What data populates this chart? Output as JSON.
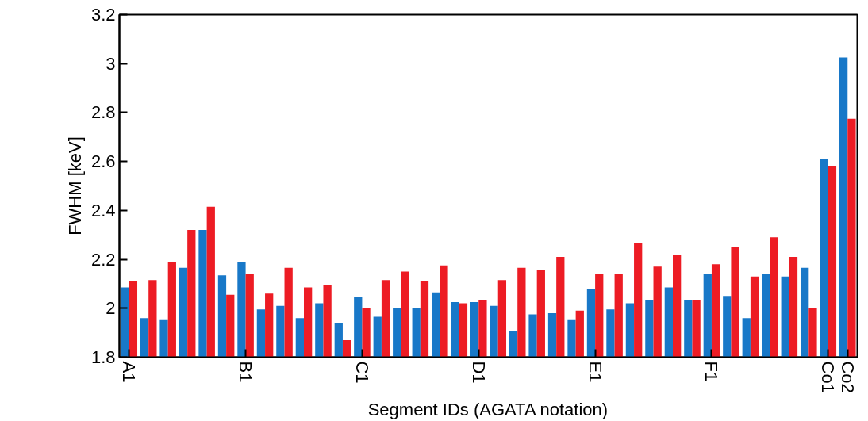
{
  "chart_data": {
    "type": "bar",
    "xlabel": "Segment IDs (AGATA notation)",
    "ylabel": "FWHM [keV]",
    "categories": [
      "A1",
      null,
      null,
      null,
      null,
      null,
      "B1",
      null,
      null,
      null,
      null,
      null,
      "C1",
      null,
      null,
      null,
      null,
      null,
      "D1",
      null,
      null,
      null,
      null,
      null,
      "E1",
      null,
      null,
      null,
      null,
      null,
      "F1",
      null,
      null,
      null,
      null,
      null,
      "Co1",
      "Co2"
    ],
    "series": [
      {
        "color": "#1878c8",
        "values": [
          2.085,
          1.96,
          1.955,
          2.165,
          2.32,
          2.135,
          2.19,
          1.995,
          2.01,
          1.96,
          2.02,
          1.94,
          2.045,
          1.965,
          2.0,
          2.0,
          2.065,
          2.025,
          2.025,
          2.01,
          1.905,
          1.975,
          1.98,
          1.955,
          2.08,
          1.995,
          2.02,
          2.035,
          2.085,
          2.035,
          2.14,
          2.05,
          1.96,
          2.14,
          2.13,
          2.165,
          2.61,
          3.025
        ]
      },
      {
        "color": "#ed1c24",
        "values": [
          2.11,
          2.115,
          2.19,
          2.32,
          2.415,
          2.055,
          2.14,
          2.06,
          2.165,
          2.085,
          2.095,
          1.87,
          2.0,
          2.115,
          2.15,
          2.11,
          2.175,
          2.02,
          2.035,
          2.115,
          2.165,
          2.155,
          2.21,
          1.99,
          2.14,
          2.14,
          2.265,
          2.17,
          2.22,
          2.035,
          2.18,
          2.25,
          2.13,
          2.29,
          2.21,
          2.0,
          2.58,
          2.775
        ]
      }
    ],
    "ylim": [
      1.8,
      3.2
    ],
    "yticks": [
      1.8,
      2,
      2.2,
      2.4,
      2.6,
      2.8,
      3,
      3.2
    ],
    "grid": false
  }
}
